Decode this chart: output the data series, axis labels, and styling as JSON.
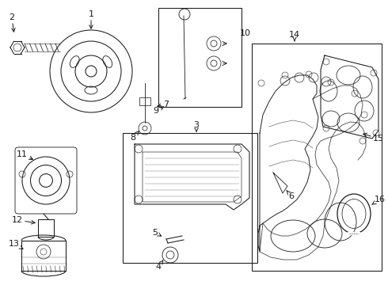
{
  "bg_color": "#ffffff",
  "line_color": "#1a1a1a",
  "fig_width": 4.9,
  "fig_height": 3.6,
  "dpi": 100,
  "label_fontsize": 8.0,
  "lw": 0.75
}
